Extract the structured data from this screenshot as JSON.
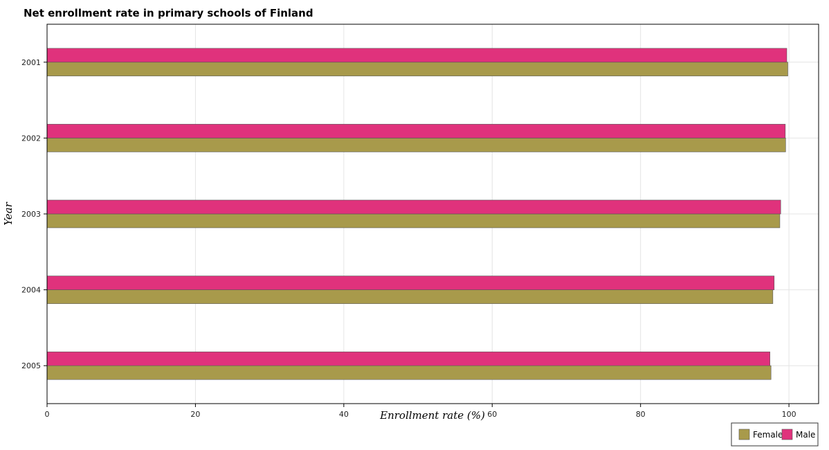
{
  "chart_data": {
    "type": "bar",
    "orientation": "horizontal",
    "title": "Net enrollment rate in primary schools of Finland",
    "xlabel": "Enrollment rate (%)",
    "ylabel": "Year",
    "xlim": [
      0,
      104
    ],
    "xticks": [
      0,
      20,
      40,
      60,
      80,
      100
    ],
    "categories": [
      "2001",
      "2002",
      "2003",
      "2004",
      "2005"
    ],
    "series": [
      {
        "name": "Female",
        "color": "#a89a4b",
        "values": [
          99.85,
          99.55,
          98.77,
          97.83,
          97.58
        ]
      },
      {
        "name": "Male",
        "color": "#e0327c",
        "values": [
          99.71,
          99.51,
          98.89,
          98.01,
          97.44
        ]
      }
    ],
    "grid": true,
    "legend_position": "bottom-right"
  }
}
